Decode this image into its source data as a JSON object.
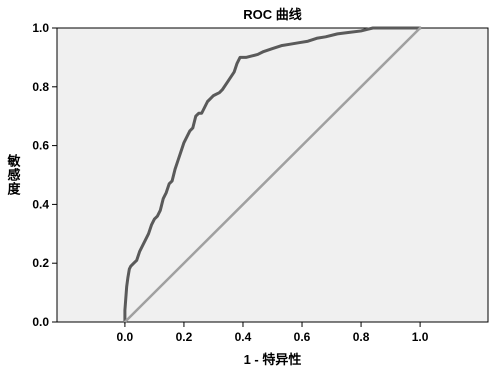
{
  "chart_data": {
    "type": "line",
    "title": "ROC 曲线",
    "xlabel": "1 - 特异性",
    "ylabel": "敏感度",
    "xlim": [
      -0.23,
      1.23
    ],
    "ylim": [
      0,
      1.0
    ],
    "x_ticks": [
      "0.0",
      "0.2",
      "0.4",
      "0.6",
      "0.8",
      "1.0"
    ],
    "y_ticks": [
      "0.0",
      "0.2",
      "0.4",
      "0.6",
      "0.8",
      "1.0"
    ],
    "grid": false,
    "plot_background": "#f0f0f0",
    "series": [
      {
        "color": "#5a5a5a",
        "x": [
          0.0,
          0.0,
          0.003,
          0.006,
          0.01,
          0.015,
          0.02,
          0.03,
          0.04,
          0.05,
          0.06,
          0.07,
          0.08,
          0.09,
          0.1,
          0.11,
          0.12,
          0.13,
          0.14,
          0.15,
          0.16,
          0.17,
          0.18,
          0.19,
          0.2,
          0.21,
          0.22,
          0.23,
          0.24,
          0.25,
          0.26,
          0.27,
          0.28,
          0.29,
          0.3,
          0.31,
          0.32,
          0.33,
          0.35,
          0.37,
          0.38,
          0.39,
          0.4,
          0.41,
          0.43,
          0.45,
          0.47,
          0.5,
          0.53,
          0.56,
          0.59,
          0.62,
          0.65,
          0.68,
          0.72,
          0.76,
          0.8,
          0.82,
          0.84,
          0.86,
          0.88,
          0.9,
          0.93,
          0.96,
          1.0
        ],
        "y": [
          0.0,
          0.04,
          0.08,
          0.12,
          0.15,
          0.18,
          0.19,
          0.2,
          0.21,
          0.24,
          0.26,
          0.28,
          0.3,
          0.33,
          0.35,
          0.36,
          0.38,
          0.42,
          0.44,
          0.47,
          0.48,
          0.52,
          0.55,
          0.58,
          0.61,
          0.63,
          0.65,
          0.66,
          0.7,
          0.71,
          0.71,
          0.73,
          0.75,
          0.76,
          0.77,
          0.775,
          0.78,
          0.79,
          0.82,
          0.85,
          0.88,
          0.9,
          0.9,
          0.9,
          0.905,
          0.91,
          0.92,
          0.93,
          0.94,
          0.945,
          0.95,
          0.955,
          0.965,
          0.97,
          0.98,
          0.985,
          0.99,
          0.995,
          1.0,
          1.0,
          1.0,
          1.0,
          1.0,
          1.0,
          1.0
        ]
      },
      {
        "color": "#a0a0a0",
        "x": [
          0.0,
          1.0
        ],
        "y": [
          0.0,
          1.0
        ]
      }
    ]
  }
}
